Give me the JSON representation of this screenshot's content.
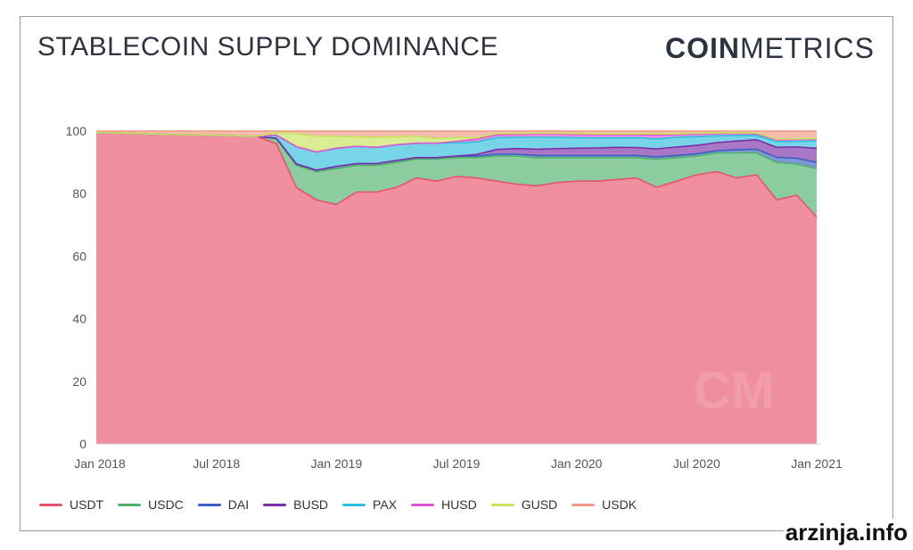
{
  "header": {
    "title": "STABLECOIN SUPPLY DOMINANCE",
    "brand_bold": "COIN",
    "brand_light": "METRICS"
  },
  "watermark": "arzinja.info",
  "chart_data": {
    "type": "area",
    "stacked": true,
    "title": "STABLECOIN SUPPLY DOMINANCE",
    "xlabel": "",
    "ylabel": "",
    "ylim": [
      0,
      100
    ],
    "yticks": [
      "0",
      "20",
      "40",
      "60",
      "80",
      "100"
    ],
    "xticks": [
      "Jan 2018",
      "Jul 2018",
      "Jan 2019",
      "Jul 2019",
      "Jan 2020",
      "Jul 2020",
      "Jan 2021"
    ],
    "x": [
      "2018-01",
      "2018-02",
      "2018-03",
      "2018-04",
      "2018-05",
      "2018-06",
      "2018-07",
      "2018-08",
      "2018-09",
      "2018-10",
      "2018-11",
      "2018-12",
      "2019-01",
      "2019-02",
      "2019-03",
      "2019-04",
      "2019-05",
      "2019-06",
      "2019-07",
      "2019-08",
      "2019-09",
      "2019-10",
      "2019-11",
      "2019-12",
      "2020-01",
      "2020-02",
      "2020-03",
      "2020-04",
      "2020-05",
      "2020-06",
      "2020-07",
      "2020-08",
      "2020-09",
      "2020-10",
      "2020-11",
      "2020-12",
      "2021-01"
    ],
    "series": [
      {
        "name": "USDT",
        "color": "#e8536d",
        "values": [
          99.5,
          99.4,
          99.2,
          99.0,
          98.9,
          98.8,
          98.7,
          98.5,
          98.3,
          96.0,
          82.0,
          78.0,
          76.5,
          80.5,
          80.5,
          82.0,
          85.0,
          84.0,
          85.5,
          85.0,
          84.0,
          83.0,
          82.5,
          83.5,
          84.0,
          84.0,
          84.5,
          85.0,
          82.0,
          84.0,
          86.0,
          87.0,
          85.0,
          86.0,
          78.0,
          79.5,
          72.5
        ]
      },
      {
        "name": "USDC",
        "color": "#4db26a",
        "values": [
          0.0,
          0.0,
          0.0,
          0.0,
          0.0,
          0.0,
          0.0,
          0.0,
          0.0,
          1.5,
          7.0,
          9.0,
          11.5,
          8.5,
          8.5,
          8.0,
          6.0,
          7.0,
          6.0,
          6.5,
          8.0,
          9.0,
          9.0,
          8.0,
          7.5,
          7.5,
          7.0,
          6.5,
          9.0,
          7.5,
          6.0,
          6.0,
          8.0,
          7.0,
          12.0,
          10.0,
          15.5
        ]
      },
      {
        "name": "DAI",
        "color": "#3b5fc0",
        "values": [
          0.0,
          0.0,
          0.0,
          0.0,
          0.0,
          0.0,
          0.0,
          0.0,
          0.0,
          0.2,
          0.5,
          0.5,
          0.7,
          0.6,
          0.6,
          0.6,
          0.5,
          0.5,
          0.5,
          0.5,
          0.6,
          0.6,
          0.7,
          0.7,
          0.7,
          0.7,
          0.7,
          0.7,
          0.7,
          0.7,
          0.7,
          0.7,
          1.0,
          1.2,
          1.6,
          1.8,
          2.0
        ]
      },
      {
        "name": "BUSD",
        "color": "#7a2ea8",
        "values": [
          0.0,
          0.0,
          0.0,
          0.0,
          0.0,
          0.0,
          0.0,
          0.0,
          0.0,
          0.0,
          0.0,
          0.0,
          0.0,
          0.0,
          0.0,
          0.0,
          0.0,
          0.0,
          0.0,
          0.5,
          1.5,
          1.8,
          2.0,
          2.2,
          2.3,
          2.4,
          2.6,
          2.5,
          2.6,
          2.7,
          2.7,
          2.6,
          2.8,
          3.0,
          3.2,
          3.6,
          4.5
        ]
      },
      {
        "name": "PAX",
        "color": "#2fbfdc",
        "values": [
          0.0,
          0.0,
          0.0,
          0.0,
          0.0,
          0.0,
          0.0,
          0.0,
          0.0,
          1.0,
          5.5,
          5.8,
          5.8,
          5.5,
          5.2,
          5.0,
          4.6,
          4.6,
          4.2,
          4.0,
          3.8,
          3.6,
          3.8,
          3.6,
          3.4,
          3.2,
          3.0,
          3.2,
          3.2,
          3.1,
          2.8,
          2.2,
          1.8,
          1.4,
          1.8,
          1.8,
          2.4
        ]
      },
      {
        "name": "HUSD",
        "color": "#e055d6",
        "values": [
          0.0,
          0.0,
          0.0,
          0.0,
          0.0,
          0.0,
          0.0,
          0.0,
          0.0,
          0.0,
          0.0,
          0.0,
          0.0,
          0.0,
          0.0,
          0.0,
          0.0,
          0.0,
          0.5,
          0.9,
          0.9,
          0.9,
          1.0,
          1.0,
          1.0,
          1.0,
          1.0,
          0.9,
          1.2,
          0.8,
          0.8,
          0.7,
          0.7,
          0.6,
          0.6,
          0.6,
          0.5
        ]
      },
      {
        "name": "GUSD",
        "color": "#c7e45a",
        "values": [
          0.0,
          0.0,
          0.0,
          0.0,
          0.0,
          0.0,
          0.0,
          0.0,
          0.0,
          0.8,
          4.2,
          5.0,
          3.8,
          3.0,
          3.2,
          2.5,
          2.2,
          1.5,
          1.2,
          0.5,
          0.4,
          0.3,
          0.3,
          0.3,
          0.3,
          0.3,
          0.3,
          0.3,
          0.4,
          0.3,
          0.3,
          0.2,
          0.2,
          0.2,
          0.2,
          0.2,
          0.2
        ]
      },
      {
        "name": "USDK",
        "color": "#ef9a82",
        "values": [
          0.5,
          0.6,
          0.8,
          1.0,
          1.1,
          1.2,
          1.3,
          1.5,
          1.7,
          0.5,
          0.8,
          1.7,
          1.7,
          2.4,
          2.0,
          1.9,
          1.7,
          2.4,
          2.1,
          2.1,
          0.8,
          0.8,
          0.7,
          0.7,
          0.8,
          0.9,
          0.9,
          0.9,
          0.9,
          0.9,
          0.7,
          0.6,
          0.5,
          0.6,
          2.6,
          2.5,
          2.4
        ]
      }
    ],
    "legend_position": "bottom-left",
    "grid": false
  }
}
